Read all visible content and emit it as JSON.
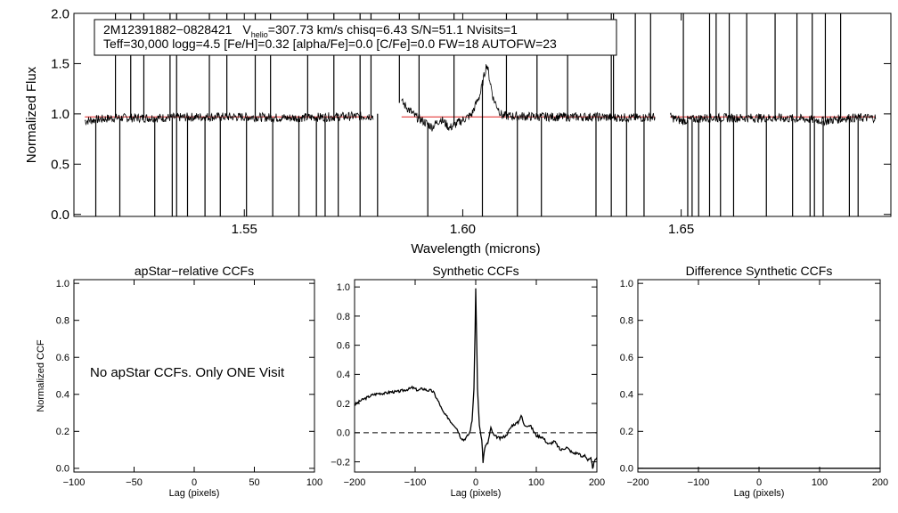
{
  "chart_data": [
    {
      "type": "line",
      "panel": "spectrum",
      "title": "",
      "xlabel": "Wavelength (microns)",
      "ylabel": "Normalized Flux",
      "xlim": [
        1.511,
        1.698
      ],
      "ylim": [
        -0.02,
        2.0
      ],
      "xticks": [
        1.55,
        1.6,
        1.65
      ],
      "xtick_labels": [
        "1.55",
        "1.60",
        "1.65"
      ],
      "yticks": [
        0.0,
        0.5,
        1.0,
        1.5,
        2.0
      ],
      "ytick_labels": [
        "0.0",
        "0.5",
        "1.0",
        "1.5",
        "2.0"
      ],
      "annotation": {
        "line1_id": "2M12391882−0828421",
        "line1_v": "V",
        "line1_v_sub": "helio",
        "line1_rest": "=307.73 km/s  chisq=6.43  S/N=51.1  Nvisits=1",
        "line2": "Teff=30,000 logg=4.5 [Fe/H]=0.32 [alpha/Fe]=0.0 [C/Fe]=0.0 FW=18 AUTOFW=23"
      },
      "colors": {
        "observed": "#000000",
        "model": "#e02020"
      },
      "chips": [
        [
          1.5135,
          1.5795
        ],
        [
          1.586,
          1.644
        ],
        [
          1.6475,
          1.6945
        ]
      ],
      "series": [
        {
          "name": "",
          "role": "observed",
          "baseline": [
            [
              1.5135,
              0.93
            ],
            [
              1.52,
              0.96
            ],
            [
              1.53,
              0.96
            ],
            [
              1.54,
              0.97
            ],
            [
              1.55,
              0.97
            ],
            [
              1.56,
              0.96
            ],
            [
              1.5795,
              0.98
            ],
            [
              1.586,
              1.12
            ],
            [
              1.589,
              0.98
            ],
            [
              1.593,
              0.87
            ],
            [
              1.595,
              0.95
            ],
            [
              1.597,
              0.86
            ],
            [
              1.6,
              0.94
            ],
            [
              1.602,
              0.99
            ],
            [
              1.604,
              1.2
            ],
            [
              1.6055,
              1.5
            ],
            [
              1.607,
              1.15
            ],
            [
              1.609,
              0.98
            ],
            [
              1.62,
              0.97
            ],
            [
              1.63,
              0.97
            ],
            [
              1.64,
              0.96
            ],
            [
              1.644,
              0.97
            ],
            [
              1.6475,
              0.97
            ],
            [
              1.65,
              0.93
            ],
            [
              1.655,
              0.96
            ],
            [
              1.66,
              0.96
            ],
            [
              1.67,
              0.96
            ],
            [
              1.678,
              0.95
            ],
            [
              1.683,
              0.93
            ],
            [
              1.688,
              0.96
            ],
            [
              1.6945,
              0.96
            ]
          ],
          "spikes_up": [
            1.5205,
            1.524,
            1.527,
            1.533,
            1.5345,
            1.542,
            1.546,
            1.5525,
            1.556,
            1.5645,
            1.5705,
            1.5765,
            1.579,
            1.5855,
            1.59,
            1.598,
            1.61,
            1.617,
            1.624,
            1.634,
            1.6345,
            1.6395,
            1.643,
            1.6505,
            1.6565,
            1.658,
            1.661,
            1.665,
            1.6715,
            1.6765,
            1.68,
            1.683,
            1.6865
          ],
          "spikes_down": [
            1.516,
            1.5215,
            1.5295,
            1.5335,
            1.5345,
            1.537,
            1.541,
            1.5445,
            1.5505,
            1.5565,
            1.5625,
            1.5665,
            1.5685,
            1.5715,
            1.5765,
            1.5805,
            1.592,
            1.6045,
            1.6125,
            1.618,
            1.6305,
            1.634,
            1.6375,
            1.6415,
            1.6515,
            1.6525,
            1.654,
            1.6565,
            1.659,
            1.662,
            1.6695,
            1.6755,
            1.6795,
            1.6805,
            1.6825,
            1.6885,
            1.6905
          ]
        },
        {
          "name": "",
          "role": "model",
          "value": 0.97
        }
      ]
    },
    {
      "type": "line",
      "panel": "apstar",
      "title": "apStar−relative CCFs",
      "xlabel": "Lag (pixels)",
      "ylabel": "Normalized CCF",
      "xlim": [
        -100,
        100
      ],
      "ylim": [
        -0.02,
        1.02
      ],
      "xticks": [
        -100,
        -50,
        0,
        50,
        100
      ],
      "xtick_labels": [
        "−100",
        "−50",
        "0",
        "50",
        "100"
      ],
      "yticks": [
        0.0,
        0.2,
        0.4,
        0.6,
        0.8,
        1.0
      ],
      "ytick_labels": [
        "0.0",
        "0.2",
        "0.4",
        "0.6",
        "0.8",
        "1.0"
      ],
      "message": "No apStar CCFs.  Only ONE Visit",
      "series": []
    },
    {
      "type": "line",
      "panel": "synthetic",
      "title": "Synthetic CCFs",
      "xlabel": "Lag (pixels)",
      "ylabel": "",
      "xlim": [
        -200,
        200
      ],
      "ylim": [
        -0.27,
        1.05
      ],
      "xticks": [
        -200,
        -100,
        0,
        100,
        200
      ],
      "xtick_labels": [
        "−200",
        "−100",
        "0",
        "100",
        "200"
      ],
      "yticks": [
        -0.2,
        0.0,
        0.2,
        0.4,
        0.6,
        0.8,
        1.0
      ],
      "ytick_labels": [
        "−0.2",
        "0.0",
        "0.2",
        "0.4",
        "0.6",
        "0.8",
        "1.0"
      ],
      "zero_line": 0.0,
      "series": [
        {
          "name": "",
          "x": [
            -200,
            -190,
            -180,
            -170,
            -160,
            -150,
            -140,
            -130,
            -120,
            -110,
            -105,
            -100,
            -95,
            -90,
            -85,
            -80,
            -75,
            -70,
            -65,
            -60,
            -55,
            -50,
            -45,
            -40,
            -35,
            -30,
            -25,
            -20,
            -15,
            -10,
            -6,
            -3,
            -1,
            0,
            1,
            3,
            6,
            10,
            12,
            15,
            20,
            25,
            30,
            40,
            50,
            60,
            70,
            75,
            80,
            90,
            100,
            110,
            120,
            130,
            140,
            150,
            160,
            170,
            175,
            180,
            185,
            190,
            193,
            196,
            200
          ],
          "y": [
            0.19,
            0.22,
            0.24,
            0.26,
            0.27,
            0.27,
            0.28,
            0.28,
            0.29,
            0.3,
            0.31,
            0.3,
            0.29,
            0.3,
            0.3,
            0.29,
            0.29,
            0.28,
            0.24,
            0.2,
            0.15,
            0.12,
            0.1,
            0.07,
            0.05,
            0.02,
            -0.03,
            -0.05,
            -0.03,
            0.0,
            0.08,
            0.3,
            0.7,
            0.99,
            0.75,
            0.3,
            0.05,
            -0.05,
            -0.2,
            -0.1,
            -0.07,
            0.03,
            -0.02,
            -0.04,
            -0.02,
            0.05,
            0.07,
            0.12,
            0.05,
            0.05,
            -0.02,
            -0.03,
            -0.08,
            -0.06,
            -0.12,
            -0.1,
            -0.14,
            -0.14,
            -0.17,
            -0.15,
            -0.19,
            -0.18,
            -0.24,
            -0.2,
            -0.17
          ]
        }
      ]
    },
    {
      "type": "line",
      "panel": "difference",
      "title": "Difference Synthetic CCFs",
      "xlabel": "Lag (pixels)",
      "ylabel": "",
      "xlim": [
        -200,
        200
      ],
      "ylim": [
        -0.02,
        1.02
      ],
      "xticks": [
        -200,
        -100,
        0,
        100,
        200
      ],
      "xtick_labels": [
        "−200",
        "−100",
        "0",
        "100",
        "200"
      ],
      "yticks": [
        0.0,
        0.2,
        0.4,
        0.6,
        0.8,
        1.0
      ],
      "ytick_labels": [
        "0.0",
        "0.2",
        "0.4",
        "0.6",
        "0.8",
        "1.0"
      ],
      "series": [
        {
          "name": "",
          "x": [
            -200,
            200
          ],
          "y": [
            0.0,
            0.0
          ]
        }
      ]
    }
  ]
}
